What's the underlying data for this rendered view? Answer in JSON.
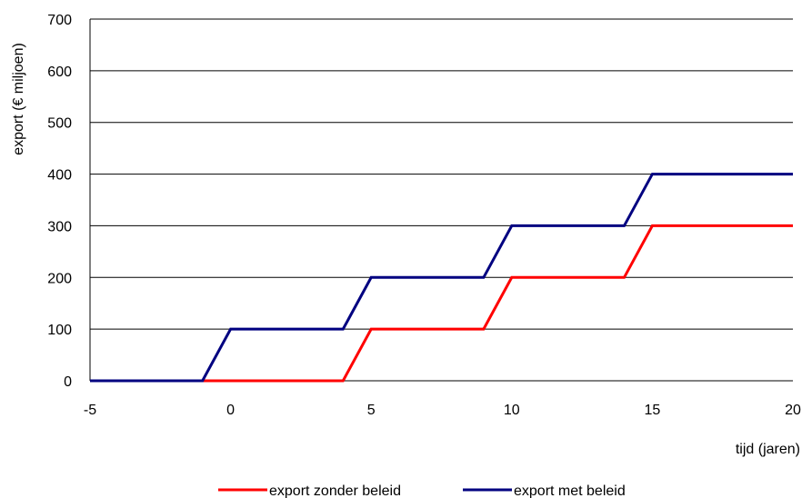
{
  "chart_data": {
    "type": "line",
    "title": "",
    "xlabel": "tijd (jaren)",
    "ylabel": "export (€ miljoen)",
    "xlim": [
      -5,
      20
    ],
    "ylim": [
      0,
      700
    ],
    "x_ticks": [
      -5,
      0,
      5,
      10,
      15,
      20
    ],
    "y_ticks": [
      0,
      100,
      200,
      300,
      400,
      500,
      600,
      700
    ],
    "grid": "horizontal",
    "legend_position": "bottom",
    "series": [
      {
        "name": "export zonder beleid",
        "color": "#ff0000",
        "x": [
          -5,
          -1,
          0,
          4,
          5,
          9,
          10,
          14,
          15,
          20
        ],
        "y": [
          0,
          0,
          0,
          0,
          100,
          100,
          200,
          200,
          300,
          300
        ]
      },
      {
        "name": "export met beleid",
        "color": "#000080",
        "x": [
          -5,
          -1,
          0,
          4,
          5,
          9,
          10,
          14,
          15,
          20
        ],
        "y": [
          0,
          0,
          100,
          100,
          200,
          200,
          300,
          300,
          400,
          400
        ]
      }
    ]
  }
}
